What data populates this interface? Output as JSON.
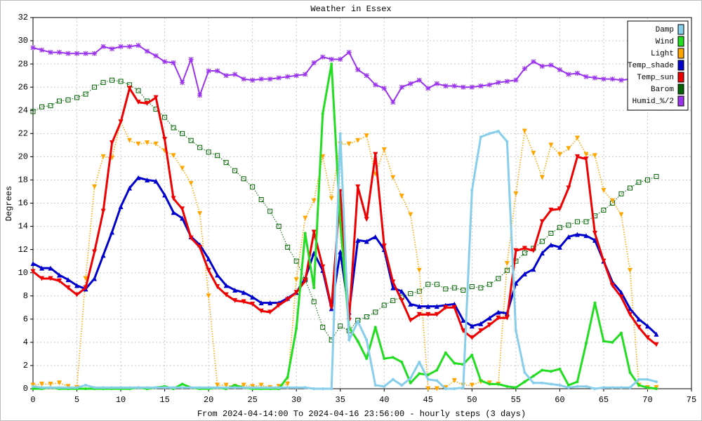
{
  "chart_data": {
    "type": "line",
    "title": "Weather in Essex",
    "ylabel": "Degrees",
    "xlabel": "From 2024-04-14:00 To 2024-04-16 23:56:00 - hourly steps (3 days)",
    "x": [
      0,
      1,
      2,
      3,
      4,
      5,
      6,
      7,
      8,
      9,
      10,
      11,
      12,
      13,
      14,
      15,
      16,
      17,
      18,
      19,
      20,
      21,
      22,
      23,
      24,
      25,
      26,
      27,
      28,
      29,
      30,
      31,
      32,
      33,
      34,
      35,
      36,
      37,
      38,
      39,
      40,
      41,
      42,
      43,
      44,
      45,
      46,
      47,
      48,
      49,
      50,
      51,
      52,
      53,
      54,
      55,
      56,
      57,
      58,
      59,
      60,
      61,
      62,
      63,
      64,
      65,
      66,
      67,
      68,
      69,
      70,
      71
    ],
    "xlim": [
      0,
      75
    ],
    "xticks": [
      0,
      5,
      10,
      15,
      20,
      25,
      30,
      35,
      40,
      45,
      50,
      55,
      60,
      65,
      70,
      75
    ],
    "ylim": [
      0,
      32
    ],
    "yticks": [
      0,
      2,
      4,
      6,
      8,
      10,
      12,
      14,
      16,
      18,
      20,
      22,
      24,
      26,
      28,
      30,
      32
    ],
    "grid": true,
    "legend": "top-right",
    "series": [
      {
        "name": "Humid_%/2",
        "color": "#9933ee",
        "marker": "star",
        "line": "solid",
        "width": 2,
        "values": [
          29.4,
          29.2,
          29.0,
          29.0,
          28.9,
          28.9,
          28.9,
          28.9,
          29.5,
          29.3,
          29.5,
          29.5,
          29.6,
          29.1,
          28.7,
          28.2,
          28.1,
          26.4,
          28.4,
          25.3,
          27.4,
          27.4,
          27.0,
          27.1,
          26.7,
          26.6,
          26.7,
          26.7,
          26.8,
          26.9,
          27.0,
          27.1,
          28.1,
          28.6,
          28.4,
          28.4,
          29.0,
          27.5,
          27.0,
          26.2,
          25.9,
          24.7,
          26.0,
          26.3,
          26.6,
          25.9,
          26.3,
          26.1,
          26.1,
          26.0,
          26.0,
          26.1,
          26.2,
          26.4,
          26.5,
          26.6,
          27.6,
          28.2,
          27.8,
          27.9,
          27.5,
          27.1,
          27.2,
          26.9,
          26.8,
          26.7,
          26.7,
          26.6,
          26.7,
          null,
          null,
          null
        ]
      },
      {
        "name": "Barom",
        "color": "#006400",
        "marker": "square-open",
        "line": "dotted",
        "width": 1,
        "values": [
          23.9,
          24.3,
          24.4,
          24.8,
          24.9,
          25.1,
          25.4,
          26.0,
          26.4,
          26.6,
          26.5,
          26.2,
          25.7,
          24.8,
          24.1,
          23.4,
          22.5,
          22.0,
          21.4,
          20.8,
          20.4,
          20.1,
          19.5,
          18.8,
          18.1,
          17.4,
          16.3,
          15.3,
          14.0,
          12.2,
          11.0,
          9.4,
          7.5,
          5.3,
          4.2,
          5.4,
          5.0,
          5.9,
          6.2,
          6.6,
          7.2,
          7.6,
          7.9,
          8.2,
          8.4,
          9.0,
          9.0,
          8.6,
          8.7,
          8.5,
          8.8,
          8.7,
          9.0,
          9.5,
          10.2,
          11.0,
          11.7,
          12.1,
          12.7,
          13.4,
          13.9,
          14.1,
          14.4,
          14.4,
          14.9,
          15.4,
          16.0,
          16.8,
          17.3,
          17.8,
          18.0,
          18.3
        ]
      },
      {
        "name": "Light",
        "color": "#ffa500",
        "marker": "triangle-down",
        "line": "dotted",
        "width": 1.5,
        "values": [
          0.3,
          0.4,
          0.4,
          0.5,
          0.2,
          0.1,
          9.5,
          17.4,
          20.0,
          19.9,
          23.0,
          21.4,
          21.1,
          21.2,
          21.1,
          20.5,
          20.1,
          19.0,
          17.7,
          15.1,
          8.0,
          0.3,
          0.3,
          0.2,
          0.3,
          0.2,
          0.3,
          0.1,
          0.2,
          0.4,
          9.4,
          14.7,
          16.2,
          20.0,
          16.4,
          21.1,
          21.1,
          21.4,
          21.8,
          18.5,
          20.6,
          18.2,
          16.6,
          15.0,
          10.2,
          0.0,
          0.0,
          0.1,
          0.7,
          0.3,
          0.3,
          0.6,
          0.5,
          0.4,
          10.8,
          16.8,
          22.2,
          20.3,
          18.2,
          21.0,
          20.2,
          20.7,
          21.6,
          20.2,
          20.1,
          17.1,
          16.2,
          15.0,
          10.2,
          0.3,
          0.1,
          0.1
        ]
      },
      {
        "name": "Temp_shade",
        "color": "#0000cc",
        "marker": "triangle-up",
        "line": "solid",
        "width": 3,
        "values": [
          10.8,
          10.4,
          10.4,
          9.8,
          9.4,
          8.9,
          8.6,
          9.5,
          11.5,
          13.5,
          15.7,
          17.3,
          18.2,
          18.0,
          17.9,
          16.7,
          15.2,
          14.7,
          13.1,
          12.4,
          11.2,
          9.8,
          8.9,
          8.5,
          8.3,
          7.9,
          7.4,
          7.4,
          7.4,
          7.8,
          8.3,
          9.5,
          11.7,
          10.2,
          6.9,
          11.8,
          6.6,
          12.8,
          12.7,
          13.1,
          12.0,
          8.7,
          8.4,
          7.3,
          7.1,
          7.1,
          7.1,
          7.2,
          7.3,
          5.9,
          5.4,
          5.6,
          6.1,
          6.6,
          6.5,
          9.1,
          9.9,
          10.3,
          11.7,
          12.4,
          12.2,
          13.1,
          13.3,
          13.2,
          12.8,
          11.0,
          9.2,
          8.3,
          6.9,
          6.0,
          5.4,
          4.7
        ]
      },
      {
        "name": "Temp_sun",
        "color": "#ee0000",
        "marker": "triangle-down",
        "line": "solid",
        "width": 3,
        "values": [
          10.1,
          9.5,
          9.5,
          9.3,
          8.7,
          8.1,
          8.7,
          11.8,
          15.3,
          21.2,
          23.0,
          25.9,
          24.7,
          24.6,
          25.1,
          21.5,
          16.4,
          15.5,
          13.0,
          12.2,
          10.2,
          8.8,
          8.1,
          7.6,
          7.5,
          7.3,
          6.7,
          6.6,
          7.2,
          7.7,
          8.3,
          9.3,
          13.5,
          10.5,
          7.0,
          17.0,
          5.9,
          17.4,
          14.6,
          20.2,
          12.3,
          9.2,
          7.6,
          5.9,
          6.4,
          6.4,
          6.4,
          7.0,
          7.0,
          5.0,
          4.4,
          5.0,
          5.5,
          6.1,
          6.1,
          11.9,
          12.1,
          11.9,
          14.4,
          15.4,
          15.5,
          17.3,
          20.0,
          19.8,
          13.4,
          11.0,
          8.9,
          7.9,
          6.4,
          5.3,
          4.4,
          3.8
        ]
      },
      {
        "name": "Wind",
        "color": "#22dd22",
        "marker": "dot",
        "line": "solid",
        "width": 3,
        "values": [
          0.0,
          0.0,
          0.1,
          0.0,
          0.0,
          0.0,
          0.0,
          0.0,
          0.0,
          0.0,
          0.0,
          0.0,
          0.1,
          0.0,
          0.1,
          0.2,
          0.0,
          0.4,
          0.1,
          0.0,
          0.0,
          0.1,
          0.0,
          0.3,
          0.1,
          0.0,
          0.0,
          0.0,
          0.0,
          1.0,
          5.2,
          13.4,
          8.7,
          23.7,
          28.0,
          14.3,
          5.3,
          4.1,
          2.6,
          5.3,
          2.6,
          2.7,
          2.3,
          0.5,
          1.3,
          1.2,
          1.6,
          3.1,
          2.2,
          2.1,
          2.9,
          0.7,
          0.4,
          0.4,
          0.2,
          0.1,
          0.6,
          1.1,
          1.6,
          1.5,
          1.7,
          0.3,
          0.6,
          3.9,
          7.4,
          4.1,
          4.0,
          4.8,
          1.4,
          0.3,
          0.1,
          0.0
        ]
      },
      {
        "name": "Damp",
        "color": "#87ceeb",
        "marker": "dot",
        "line": "solid",
        "width": 3,
        "values": [
          0.2,
          0.1,
          0.1,
          0.1,
          0.1,
          0.1,
          0.3,
          0.1,
          0.1,
          0.1,
          0.1,
          0.1,
          0.1,
          0.1,
          0.1,
          0.1,
          0.1,
          0.1,
          0.1,
          0.1,
          0.1,
          0.1,
          0.1,
          0.1,
          0.1,
          0.1,
          0.1,
          0.1,
          0.1,
          0.1,
          0.1,
          0.1,
          0.0,
          0.0,
          0.0,
          22.0,
          4.2,
          5.8,
          4.2,
          0.3,
          0.2,
          0.8,
          0.3,
          0.9,
          2.3,
          0.8,
          0.7,
          0.0,
          0.0,
          0.1,
          17.1,
          21.7,
          22.0,
          22.2,
          21.3,
          5.0,
          1.4,
          0.5,
          0.5,
          0.4,
          0.3,
          0.1,
          0.2,
          0.2,
          0.0,
          0.1,
          0.1,
          0.1,
          0.1,
          0.8,
          0.8,
          0.6
        ]
      }
    ]
  }
}
